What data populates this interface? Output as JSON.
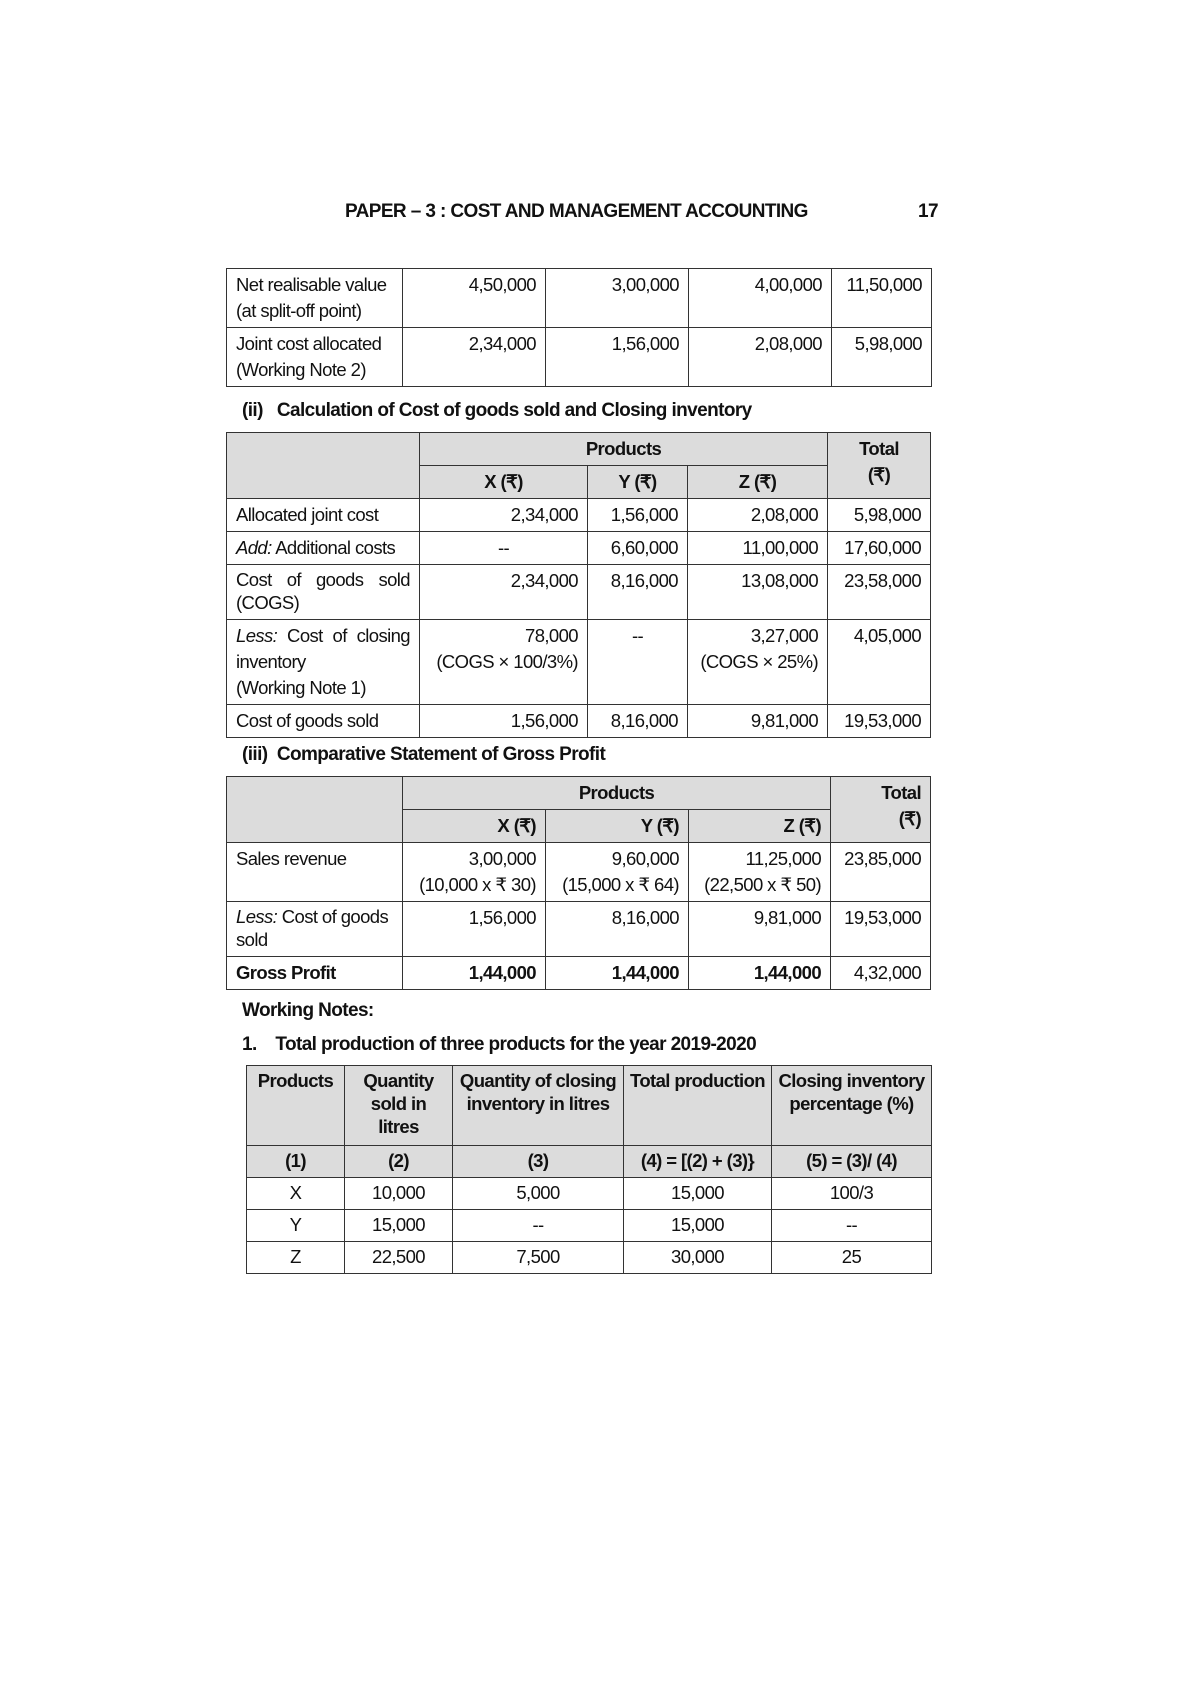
{
  "header": {
    "title": "PAPER – 3 : COST AND MANAGEMENT ACCOUNTING",
    "page_number": "17"
  },
  "table1": {
    "rows": [
      {
        "label": "Net realisable value",
        "label2": "(at split-off point)",
        "values": [
          "4,50,000",
          "3,00,000",
          "4,00,000",
          "11,50,000"
        ]
      },
      {
        "label": "Joint cost allocated",
        "label2": "(Working Note 2)",
        "values": [
          "2,34,000",
          "1,56,000",
          "2,08,000",
          "5,98,000"
        ]
      }
    ]
  },
  "section2": {
    "num": "(ii)",
    "title": "Calculation of Cost of goods sold and Closing inventory",
    "products_label": "Products",
    "total_label": "Total",
    "total_unit": "(₹)",
    "cols": [
      "X (₹)",
      "Y (₹)",
      "Z (₹)"
    ],
    "rows": [
      {
        "prefix": "",
        "label": "Allocated joint cost",
        "values": [
          "2,34,000",
          "1,56,000",
          "2,08,000",
          "5,98,000"
        ]
      },
      {
        "prefix": "Add:",
        "label": " Additional costs",
        "values": [
          "--",
          "6,60,000",
          "11,00,000",
          "17,60,000"
        ]
      },
      {
        "prefix": "",
        "label": "Cost of goods sold (COGS)",
        "values": [
          "2,34,000",
          "8,16,000",
          "13,08,000",
          "23,58,000"
        ]
      },
      {
        "prefix": "Less:",
        "label": " Cost of closing inventory",
        "label2": "(Working Note 1)",
        "values": [
          "78,000",
          "--",
          "3,27,000",
          "4,05,000"
        ],
        "notes": [
          "(COGS × 100/3%)",
          "",
          "(COGS × 25%)",
          ""
        ]
      },
      {
        "prefix": "",
        "label": "Cost of goods sold",
        "values": [
          "1,56,000",
          "8,16,000",
          "9,81,000",
          "19,53,000"
        ]
      }
    ]
  },
  "section3": {
    "num": "(iii)",
    "title": "Comparative Statement of Gross Profit",
    "products_label": "Products",
    "total_label": "Total",
    "total_unit": "(₹)",
    "cols": [
      "X (₹)",
      "Y (₹)",
      "Z (₹)"
    ],
    "rows": [
      {
        "prefix": "",
        "label": "Sales revenue",
        "values": [
          "3,00,000",
          "9,60,000",
          "11,25,000",
          "23,85,000"
        ],
        "notes": [
          "(10,000 x ₹ 30)",
          "(15,000 x ₹ 64)",
          "(22,500 x ₹ 50)",
          ""
        ]
      },
      {
        "prefix": "Less:",
        "label": " Cost of goods sold",
        "values": [
          "1,56,000",
          "8,16,000",
          "9,81,000",
          "19,53,000"
        ]
      },
      {
        "prefix": "",
        "label": "Gross Profit",
        "values": [
          "1,44,000",
          "1,44,000",
          "1,44,000",
          "4,32,000"
        ]
      }
    ]
  },
  "working_notes": {
    "heading": "Working Notes:",
    "note1_num": "1.",
    "note1_title": "Total production of three products for the year 2019-2020",
    "headers": [
      "Products",
      "Quantity sold in litres",
      "Quantity of closing inventory in litres",
      "Total production",
      "Closing inventory percentage (%)"
    ],
    "col_numbers": [
      "(1)",
      "(2)",
      "(3)",
      "(4) = [(2) + (3)}",
      "(5) = (3)/ (4)"
    ],
    "rows": [
      [
        "X",
        "10,000",
        "5,000",
        "15,000",
        "100/3"
      ],
      [
        "Y",
        "15,000",
        "--",
        "15,000",
        "--"
      ],
      [
        "Z",
        "22,500",
        "7,500",
        "30,000",
        "25"
      ]
    ]
  }
}
